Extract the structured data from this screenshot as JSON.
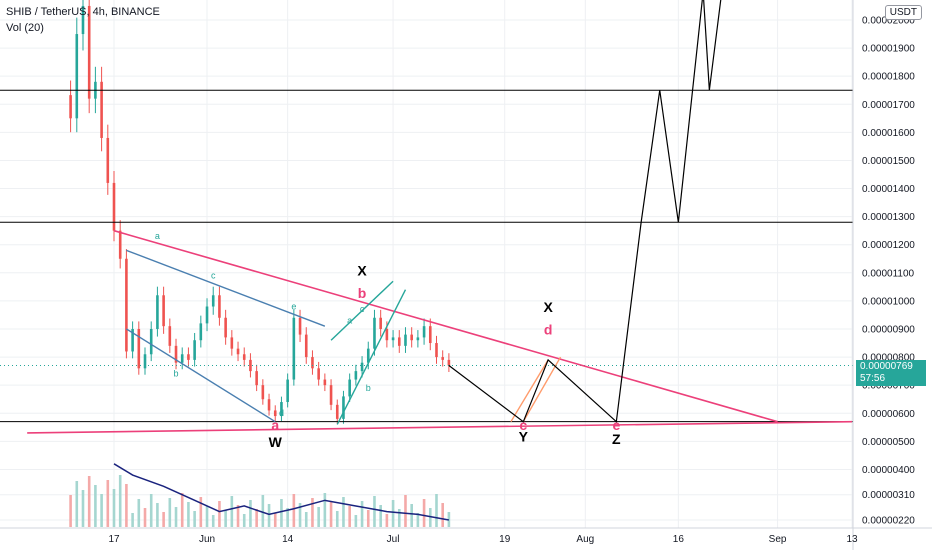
{
  "header": {
    "symbol_title": "SHIB / TetherUS, 4h, BINANCE",
    "volume_label": "Vol (20)",
    "currency": "USDT"
  },
  "last_price": {
    "value": "0.00000769",
    "countdown": "57:56",
    "color": "#26a69a"
  },
  "colors": {
    "up": "#26a69a",
    "down": "#ef5350",
    "pink": "#ec407a",
    "blue": "#4a7fb0",
    "teal": "#26a69a",
    "orange": "#ff9b6b",
    "black": "#000000",
    "grid": "#eef0f3",
    "axis_text": "#131722"
  },
  "chart_data": {
    "type": "candlestick",
    "title": "SHIB / TetherUS, 4h, BINANCE",
    "x_axis": {
      "unit": "date",
      "ticks": [
        "17",
        "Jun",
        "14",
        "Jul",
        "19",
        "Aug",
        "16",
        "Sep",
        "13"
      ],
      "tick_dates": [
        "2021-05-17",
        "2021-06-01",
        "2021-06-14",
        "2021-07-01",
        "2021-07-19",
        "2021-08-01",
        "2021-08-16",
        "2021-09-01",
        "2021-09-13"
      ]
    },
    "y_axis": {
      "ticks": [
        {
          "label": "0.00002000",
          "value": 2e-05
        },
        {
          "label": "0.00001900",
          "value": 1.9e-05
        },
        {
          "label": "0.00001800",
          "value": 1.8e-05
        },
        {
          "label": "0.00001700",
          "value": 1.7e-05
        },
        {
          "label": "0.00001600",
          "value": 1.6e-05
        },
        {
          "label": "0.00001500",
          "value": 1.5e-05
        },
        {
          "label": "0.00001400",
          "value": 1.4e-05
        },
        {
          "label": "0.00001300",
          "value": 1.3e-05
        },
        {
          "label": "0.00001200",
          "value": 1.2e-05
        },
        {
          "label": "0.00001100",
          "value": 1.1e-05
        },
        {
          "label": "0.00001000",
          "value": 1e-05
        },
        {
          "label": "0.00000900",
          "value": 9e-06
        },
        {
          "label": "0.00000800",
          "value": 8e-06
        },
        {
          "label": "0.00000700",
          "value": 7e-06
        },
        {
          "label": "0.00000600",
          "value": 6e-06
        },
        {
          "label": "0.00000500",
          "value": 5e-06
        },
        {
          "label": "0.00000400",
          "value": 4e-06
        },
        {
          "label": "0.00000310",
          "value": 3.1e-06
        },
        {
          "label": "0.00000220",
          "value": 2.2e-06
        }
      ]
    },
    "price_path": [
      [
        "2021-05-10",
        1.65e-05
      ],
      [
        "2021-05-11",
        1.95e-05
      ],
      [
        "2021-05-12",
        2.05e-05
      ],
      [
        "2021-05-13",
        1.72e-05
      ],
      [
        "2021-05-14",
        1.78e-05
      ],
      [
        "2021-05-15",
        1.58e-05
      ],
      [
        "2021-05-16",
        1.42e-05
      ],
      [
        "2021-05-17",
        1.25e-05
      ],
      [
        "2021-05-18",
        1.15e-05
      ],
      [
        "2021-05-19",
        8.2e-06
      ],
      [
        "2021-05-20",
        9e-06
      ],
      [
        "2021-05-21",
        7.6e-06
      ],
      [
        "2021-05-22",
        8.1e-06
      ],
      [
        "2021-05-23",
        9e-06
      ],
      [
        "2021-05-24",
        1.02e-05
      ],
      [
        "2021-05-25",
        9.1e-06
      ],
      [
        "2021-05-26",
        8.4e-06
      ],
      [
        "2021-05-27",
        7.8e-06
      ],
      [
        "2021-05-28",
        8.1e-06
      ],
      [
        "2021-05-29",
        7.9e-06
      ],
      [
        "2021-05-30",
        8.6e-06
      ],
      [
        "2021-05-31",
        9.2e-06
      ],
      [
        "2021-06-01",
        9.8e-06
      ],
      [
        "2021-06-02",
        1.02e-05
      ],
      [
        "2021-06-03",
        9.4e-06
      ],
      [
        "2021-06-04",
        8.7e-06
      ],
      [
        "2021-06-05",
        8.3e-06
      ],
      [
        "2021-06-06",
        8.1e-06
      ],
      [
        "2021-06-07",
        7.9e-06
      ],
      [
        "2021-06-08",
        7.5e-06
      ],
      [
        "2021-06-09",
        7e-06
      ],
      [
        "2021-06-10",
        6.5e-06
      ],
      [
        "2021-06-11",
        6.1e-06
      ],
      [
        "2021-06-12",
        5.9e-06
      ],
      [
        "2021-06-13",
        6.4e-06
      ],
      [
        "2021-06-14",
        7.2e-06
      ],
      [
        "2021-06-15",
        9.4e-06
      ],
      [
        "2021-06-16",
        8.8e-06
      ],
      [
        "2021-06-17",
        8e-06
      ],
      [
        "2021-06-18",
        7.6e-06
      ],
      [
        "2021-06-19",
        7.2e-06
      ],
      [
        "2021-06-20",
        7e-06
      ],
      [
        "2021-06-21",
        6.3e-06
      ],
      [
        "2021-06-22",
        5.8e-06
      ],
      [
        "2021-06-23",
        6.6e-06
      ],
      [
        "2021-06-24",
        7.2e-06
      ],
      [
        "2021-06-25",
        7.5e-06
      ],
      [
        "2021-06-26",
        7.8e-06
      ],
      [
        "2021-06-27",
        8.3e-06
      ],
      [
        "2021-06-28",
        9.4e-06
      ],
      [
        "2021-06-29",
        9e-06
      ],
      [
        "2021-06-30",
        8.6e-06
      ],
      [
        "2021-07-01",
        8.7e-06
      ],
      [
        "2021-07-02",
        8.4e-06
      ],
      [
        "2021-07-03",
        8.8e-06
      ],
      [
        "2021-07-04",
        8.6e-06
      ],
      [
        "2021-07-05",
        8.7e-06
      ],
      [
        "2021-07-06",
        9.1e-06
      ],
      [
        "2021-07-07",
        8.5e-06
      ],
      [
        "2021-07-08",
        8e-06
      ],
      [
        "2021-07-09",
        7.9e-06
      ],
      [
        "2021-07-10",
        7.7e-06
      ]
    ],
    "volume_ma": [
      [
        "2021-05-17",
        4.2e-06
      ],
      [
        "2021-05-20",
        3.8e-06
      ],
      [
        "2021-05-25",
        3.4e-06
      ],
      [
        "2021-05-30",
        2.9e-06
      ],
      [
        "2021-06-03",
        2.5e-06
      ],
      [
        "2021-06-07",
        2.7e-06
      ],
      [
        "2021-06-11",
        2.4e-06
      ],
      [
        "2021-06-15",
        2.6e-06
      ],
      [
        "2021-06-20",
        2.9e-06
      ],
      [
        "2021-06-25",
        2.7e-06
      ],
      [
        "2021-06-30",
        2.5e-06
      ],
      [
        "2021-07-05",
        2.4e-06
      ],
      [
        "2021-07-10",
        2.2e-06
      ]
    ],
    "horizontal_levels": [
      1.75e-05,
      1.28e-05,
      5.7e-06
    ],
    "elliott_labels": [
      {
        "text": "a",
        "date": "2021-05-24",
        "price": 1.22e-05,
        "color": "teal"
      },
      {
        "text": "b",
        "date": "2021-05-27",
        "price": 7.3e-06,
        "color": "teal"
      },
      {
        "text": "c",
        "date": "2021-06-02",
        "price": 1.08e-05,
        "color": "teal"
      },
      {
        "text": "d",
        "date": "2021-06-13",
        "price": 5.9e-06,
        "color": "teal"
      },
      {
        "text": "e",
        "date": "2021-06-15",
        "price": 9.7e-06,
        "color": "teal"
      },
      {
        "text": "a",
        "date": "2021-06-24",
        "price": 9.2e-06,
        "color": "teal"
      },
      {
        "text": "b",
        "date": "2021-06-27",
        "price": 6.8e-06,
        "color": "teal"
      },
      {
        "text": "c",
        "date": "2021-06-26",
        "price": 9.6e-06,
        "color": "teal"
      },
      {
        "text": "X",
        "date": "2021-06-26",
        "price": 1.09e-05,
        "color": "black"
      },
      {
        "text": "b",
        "date": "2021-06-26",
        "price": 1.01e-05,
        "color": "pink"
      },
      {
        "text": "a",
        "date": "2021-06-12",
        "price": 5.4e-06,
        "color": "pink"
      },
      {
        "text": "W",
        "date": "2021-06-12",
        "price": 4.8e-06,
        "color": "black"
      },
      {
        "text": "c",
        "date": "2021-07-22",
        "price": 5.4e-06,
        "color": "pink"
      },
      {
        "text": "Y",
        "date": "2021-07-22",
        "price": 5e-06,
        "color": "black"
      },
      {
        "text": "X",
        "date": "2021-07-26",
        "price": 9.6e-06,
        "color": "black"
      },
      {
        "text": "d",
        "date": "2021-07-26",
        "price": 8.8e-06,
        "color": "pink"
      },
      {
        "text": "e",
        "date": "2021-08-06",
        "price": 5.4e-06,
        "color": "pink"
      },
      {
        "text": "Z",
        "date": "2021-08-06",
        "price": 4.9e-06,
        "color": "black"
      }
    ],
    "projection_path": [
      [
        "2021-07-10",
        7.7e-06
      ],
      [
        "2021-07-22",
        5.7e-06
      ],
      [
        "2021-07-26",
        7.9e-06
      ],
      [
        "2021-08-06",
        5.7e-06
      ],
      [
        "2021-08-10",
        1.28e-05
      ],
      [
        "2021-08-13",
        1.75e-05
      ],
      [
        "2021-08-16",
        1.28e-05
      ],
      [
        "2021-08-20",
        2.1e-05
      ],
      [
        "2021-08-21",
        1.75e-05
      ],
      [
        "2021-08-23",
        2.1e-05
      ]
    ]
  }
}
